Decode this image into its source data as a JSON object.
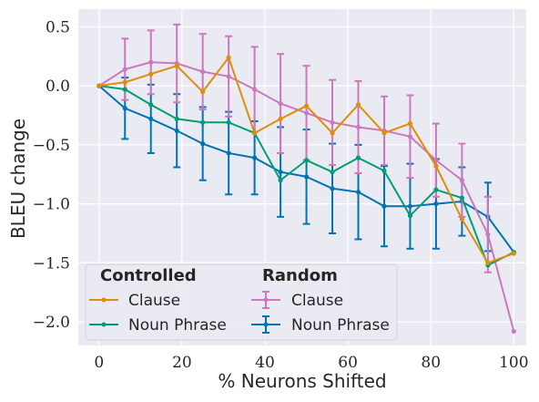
{
  "chart_data": {
    "type": "line",
    "xlabel": "% Neurons Shifted",
    "ylabel": "BLEU change",
    "xlim": [
      -5,
      103
    ],
    "ylim": [
      -2.2,
      0.65
    ],
    "xticks": [
      0,
      20,
      40,
      60,
      80,
      100
    ],
    "yticks": [
      0.5,
      0.0,
      -0.5,
      -1.0,
      -1.5,
      -2.0
    ],
    "xtick_labels": [
      "0",
      "20",
      "40",
      "60",
      "80",
      "100"
    ],
    "ytick_labels": [
      "0.5",
      "0.0",
      "−0.5",
      "−1.0",
      "−1.5",
      "−2.0"
    ],
    "grid": true,
    "legend_placement": "bottom-left",
    "x": [
      0,
      6.25,
      12.5,
      18.75,
      25,
      31.25,
      37.5,
      43.75,
      50,
      56.25,
      62.5,
      68.75,
      75,
      81.25,
      87.5,
      93.75,
      100
    ],
    "groups": [
      {
        "title": "Controlled",
        "series": [
          {
            "name": "Clause",
            "color": "#de8f05",
            "marker": "dot",
            "values": [
              0.0,
              0.03,
              0.1,
              0.17,
              -0.05,
              0.24,
              -0.4,
              -0.28,
              -0.17,
              -0.4,
              -0.16,
              -0.4,
              -0.32,
              -0.68,
              -1.13,
              -1.5,
              -1.42
            ]
          },
          {
            "name": "Noun Phrase",
            "color": "#029e73",
            "marker": "dot",
            "values": [
              0.0,
              -0.03,
              -0.16,
              -0.28,
              -0.31,
              -0.31,
              -0.4,
              -0.8,
              -0.63,
              -0.73,
              -0.61,
              -0.72,
              -1.1,
              -0.88,
              -0.95,
              -1.52,
              -1.41
            ]
          }
        ]
      },
      {
        "title": "Random",
        "series": [
          {
            "name": "Clause",
            "color": "#cc78bc",
            "marker": "errorbar",
            "values": [
              0.0,
              0.14,
              0.2,
              0.19,
              0.12,
              0.08,
              -0.03,
              -0.15,
              -0.23,
              -0.31,
              -0.35,
              -0.38,
              -0.43,
              -0.63,
              -0.8,
              -1.26,
              -2.08
            ],
            "errors": [
              0.0,
              0.26,
              0.27,
              0.33,
              0.32,
              0.34,
              0.36,
              0.42,
              0.4,
              0.36,
              0.39,
              0.29,
              0.35,
              0.31,
              0.31,
              0.32,
              0.0
            ]
          },
          {
            "name": "Noun Phrase",
            "color": "#0173b2",
            "marker": "errorbar",
            "values": [
              0.0,
              -0.19,
              -0.28,
              -0.38,
              -0.49,
              -0.57,
              -0.61,
              -0.73,
              -0.77,
              -0.87,
              -0.9,
              -1.02,
              -1.02,
              -1.0,
              -0.98,
              -1.11,
              -1.41
            ],
            "errors": [
              0.0,
              0.26,
              0.29,
              0.31,
              0.31,
              0.35,
              0.31,
              0.38,
              0.4,
              0.38,
              0.4,
              0.34,
              0.36,
              0.38,
              0.29,
              0.29,
              0.0
            ]
          }
        ]
      }
    ]
  }
}
